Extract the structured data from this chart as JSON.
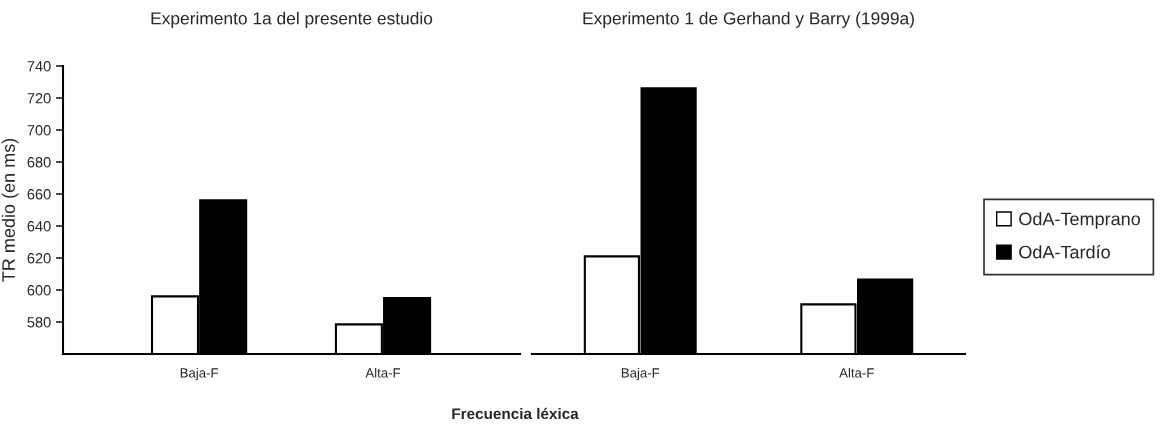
{
  "chart_data": [
    {
      "type": "bar",
      "title": "Experimento 1a del presente estudio",
      "xlabel": "Frecuencia léxica",
      "ylabel": "TR medio (en ms)",
      "categories": [
        "Baja-F",
        "Alta-F"
      ],
      "series": [
        {
          "color": "#ffffff",
          "values": [
            596,
            578.5
          ]
        },
        {
          "color": "#000000",
          "values": [
            656,
            595
          ]
        }
      ],
      "ylim": [
        560,
        740
      ],
      "yticks": [
        580,
        600,
        620,
        640,
        660,
        680,
        700,
        720,
        740
      ],
      "grid": false,
      "legend": false
    },
    {
      "type": "bar",
      "title": "Experimento 1 de Gerhand y Barry (1999a)",
      "categories": [
        "Baja-F",
        "Alta-F"
      ],
      "series": [
        {
          "name": "OdA-Temprano",
          "color": "#ffffff",
          "values": [
            621,
            591
          ]
        },
        {
          "name": "OdA-Tardío",
          "color": "#000000",
          "values": [
            726,
            606.5
          ]
        }
      ],
      "ylim": [
        560,
        740
      ],
      "yticks": [
        580,
        600,
        620,
        640,
        660,
        680,
        700,
        720,
        740
      ],
      "tick_labels": "x",
      "grid": false,
      "legend": "right"
    }
  ]
}
